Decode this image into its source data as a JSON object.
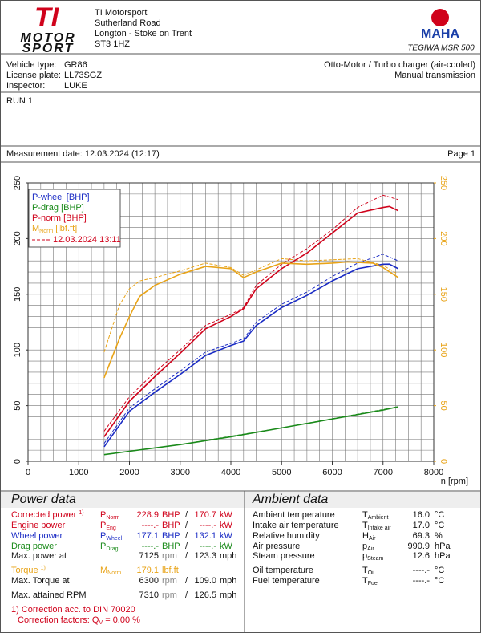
{
  "header": {
    "company": [
      "TI Motorsport",
      "Sutherland Road",
      "Longton - Stoke on Trent",
      "ST3 1HZ"
    ],
    "logo": {
      "mark": "TI",
      "lines": [
        "MOTOR",
        "SPORT"
      ]
    },
    "maha": {
      "mark": "MAHA",
      "model": "TEGIWA MSR 500"
    }
  },
  "vehicle": {
    "rows": [
      [
        "Vehicle type:",
        "GR86"
      ],
      [
        "License plate:",
        "LL73SGZ"
      ],
      [
        "Inspector:",
        "LUKE"
      ]
    ],
    "right": [
      "Otto-Motor / Turbo charger (air-cooled)",
      "Manual transmission"
    ]
  },
  "run": "RUN 1",
  "measurement": {
    "date": "Measurement date: 12.03.2024 (12:17)",
    "page": "Page 1"
  },
  "chart_data": {
    "type": "line",
    "x_label": "n [rpm]",
    "xlim": [
      0,
      8000
    ],
    "xticks": [
      0,
      1000,
      2000,
      3000,
      4000,
      5000,
      6000,
      7000,
      8000
    ],
    "ylim": [
      0,
      250
    ],
    "yticks": [
      0,
      50,
      100,
      150,
      200,
      250
    ],
    "y2lim": [
      0,
      250
    ],
    "y2ticks": [
      0,
      50,
      100,
      150,
      200,
      250
    ],
    "y2color": "#e8a317",
    "grid": true,
    "minor_grid": {
      "x": 250,
      "y": 10
    },
    "legend": "upper left",
    "series": [
      {
        "name": "P-wheel [BHP]",
        "color": "#1a2bc4",
        "x": [
          1500,
          2000,
          2500,
          3000,
          3500,
          4000,
          4250,
          4500,
          5000,
          5500,
          6000,
          6500,
          7000,
          7125,
          7300
        ],
        "values": [
          13,
          45,
          62,
          78,
          95,
          104,
          108,
          122,
          138,
          149,
          162,
          173,
          177,
          177.1,
          173
        ]
      },
      {
        "name": "P-drag [BHP]",
        "color": "#1a8a1a",
        "x": [
          1500,
          2000,
          3000,
          4000,
          5000,
          6000,
          7000,
          7300
        ],
        "values": [
          6,
          9,
          15,
          22,
          30,
          38,
          46,
          49
        ]
      },
      {
        "name": "P-norm [BHP]",
        "color": "#d0021b",
        "x": [
          1500,
          2000,
          2500,
          3000,
          3500,
          4000,
          4250,
          4500,
          5000,
          5500,
          6000,
          6500,
          7000,
          7125,
          7300
        ],
        "values": [
          22,
          54,
          76,
          97,
          119,
          130,
          137,
          155,
          173,
          187,
          205,
          223,
          228,
          228.9,
          225
        ]
      },
      {
        "name": "M",
        "name_sub": "Norm",
        "name_unit": "[lbf.ft]",
        "color": "#e8a317",
        "axis": "y2",
        "x": [
          1500,
          1800,
          2000,
          2200,
          2500,
          3000,
          3500,
          4000,
          4250,
          4500,
          5000,
          5500,
          6000,
          6300,
          6800,
          7000,
          7300
        ],
        "values": [
          75,
          110,
          130,
          148,
          158,
          168,
          175,
          173,
          165,
          170,
          178,
          177,
          178,
          179.1,
          178,
          174,
          165
        ]
      }
    ],
    "comparison": {
      "name": "12.03.2024 13:11",
      "color": "#d0021b",
      "series": [
        {
          "color": "#1a2bc4",
          "x": [
            1500,
            2000,
            2500,
            3000,
            3500,
            4000,
            4250,
            4500,
            5000,
            5500,
            6000,
            6500,
            7000,
            7300
          ],
          "values": [
            16,
            48,
            65,
            81,
            98,
            106,
            110,
            125,
            141,
            152,
            166,
            178,
            186,
            180
          ]
        },
        {
          "color": "#1a8a1a",
          "x": [
            1500,
            3000,
            5000,
            7300
          ],
          "values": [
            6,
            15,
            30,
            49
          ]
        },
        {
          "color": "#d0021b",
          "x": [
            1500,
            2000,
            2500,
            3000,
            3500,
            4000,
            4250,
            4500,
            5000,
            5500,
            6000,
            6500,
            7000,
            7300
          ],
          "values": [
            27,
            58,
            80,
            100,
            122,
            132,
            138,
            158,
            177,
            191,
            208,
            228,
            239,
            235
          ]
        },
        {
          "color": "#e8a317",
          "axis": "y2",
          "x": [
            1500,
            1800,
            2000,
            2200,
            2500,
            3000,
            3500,
            4000,
            4250,
            4500,
            5000,
            5500,
            6000,
            6500,
            7000,
            7300
          ],
          "values": [
            98,
            140,
            155,
            162,
            165,
            171,
            178,
            174,
            167,
            172,
            182,
            180,
            181,
            182,
            176,
            168
          ]
        }
      ]
    }
  },
  "power": {
    "title": "Power data",
    "rows": [
      {
        "label": "Corrected power",
        "note": "1)",
        "color": "#d0021b",
        "sym": "P",
        "sub": "Norm",
        "v1": "228.9",
        "u1": "BHP",
        "sep": "/",
        "v2": "170.7",
        "u2": "kW"
      },
      {
        "label": "Engine power",
        "color": "#d0021b",
        "sym": "P",
        "sub": "Eng",
        "v1": "----.-",
        "u1": "BHP",
        "sep": "/",
        "v2": "----.-",
        "u2": "kW"
      },
      {
        "label": "Wheel power",
        "color": "#1a2bc4",
        "sym": "P",
        "sub": "Wheel",
        "v1": "177.1",
        "u1": "BHP",
        "sep": "/",
        "v2": "132.1",
        "u2": "kW"
      },
      {
        "label": "Drag power",
        "color": "#1a8a1a",
        "sym": "P",
        "sub": "Drag",
        "v1": "----.-",
        "u1": "BHP",
        "sep": "/",
        "v2": "----.-",
        "u2": "kW"
      },
      {
        "label": "Max. power at",
        "v1": "7125",
        "u1": "rpm",
        "sep": "/",
        "v2": "123.3",
        "u2": "mph"
      },
      {
        "label": "Torque",
        "note": "1)",
        "color": "#e8a317",
        "sym": "M",
        "sub": "Norm",
        "v1": "179.1",
        "u1": "lbf.ft"
      },
      {
        "label": "Max. Torque at",
        "v1": "6300",
        "u1": "rpm",
        "sep": "/",
        "v2": "109.0",
        "u2": "mph"
      },
      {
        "label": "Max. attained RPM",
        "v1": "7310",
        "u1": "rpm",
        "sep": "/",
        "v2": "126.5",
        "u2": "mph"
      }
    ],
    "footnote": [
      "1) Correction acc. to DIN 70020",
      "Correction factors: Q",
      "V",
      " =  0.00 %"
    ]
  },
  "ambient": {
    "title": "Ambient data",
    "rows": [
      {
        "label": "Ambient temperature",
        "sym": "T",
        "sub": "Ambient",
        "v": "16.0",
        "u": "°C"
      },
      {
        "label": "Intake air temperature",
        "sym": "T",
        "sub": "Intake air",
        "v": "17.0",
        "u": "°C"
      },
      {
        "label": "Relative humidity",
        "sym": "H",
        "sub": "Air",
        "v": "69.3",
        "u": "%"
      },
      {
        "label": "Air pressure",
        "sym": "p",
        "sub": "Air",
        "v": "990.9",
        "u": "hPa"
      },
      {
        "label": "Steam pressure",
        "sym": "p",
        "sub": "Steam",
        "v": "12.6",
        "u": "hPa"
      },
      {
        "label": "Oil temperature",
        "sym": "T",
        "sub": "Oil",
        "v": "----.-",
        "u": "°C"
      },
      {
        "label": "Fuel temperature",
        "sym": "T",
        "sub": "Fuel",
        "v": "----.-",
        "u": "°C"
      }
    ]
  }
}
